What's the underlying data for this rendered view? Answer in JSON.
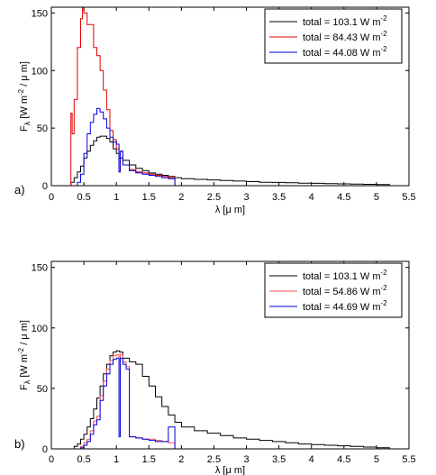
{
  "chart_data": [
    {
      "type": "line",
      "panel_label": "a)",
      "xlabel": "λ [μ m]",
      "ylabel": "F_λ [W m^-2 / μ m]",
      "xlim": [
        0,
        5.5
      ],
      "ylim": [
        0,
        155
      ],
      "xticks": [
        "0",
        "0.5",
        "1",
        "1.5",
        "2",
        "2.5",
        "3",
        "3.5",
        "4",
        "4.5",
        "5",
        "5.5"
      ],
      "yticks": [
        "0",
        "50",
        "100",
        "150"
      ],
      "legend_position": "top-right",
      "series": [
        {
          "label": "total = 103.1 W m",
          "superscript": "-2",
          "color": "#000000",
          "x": [
            0.3,
            0.35,
            0.4,
            0.45,
            0.5,
            0.55,
            0.6,
            0.65,
            0.7,
            0.75,
            0.8,
            0.85,
            0.9,
            0.95,
            1.0,
            1.04,
            1.06,
            1.1,
            1.2,
            1.3,
            1.4,
            1.5,
            1.6,
            1.7,
            1.8,
            1.9,
            2.0,
            2.2,
            2.4,
            2.6,
            2.8,
            3.0,
            3.2,
            3.4,
            3.6,
            3.8,
            4.0,
            4.2,
            4.4,
            4.6,
            4.8,
            5.0,
            5.2
          ],
          "y": [
            3,
            7,
            12,
            17,
            24,
            30,
            35,
            39,
            42,
            43,
            43,
            41,
            38,
            32,
            28,
            24,
            24,
            22,
            18,
            15,
            13,
            11,
            10,
            9,
            8,
            7,
            6,
            5.5,
            5,
            4.5,
            4,
            3.5,
            3,
            2.8,
            2.5,
            2.2,
            2,
            1.8,
            1.6,
            1.4,
            1.2,
            1,
            0
          ]
        },
        {
          "label": "total = 84.43 W m",
          "superscript": "-2",
          "color": "#e00000",
          "x": [
            0.3,
            0.32,
            0.35,
            0.4,
            0.45,
            0.48,
            0.5,
            0.55,
            0.6,
            0.65,
            0.7,
            0.75,
            0.8,
            0.85,
            0.9,
            0.95,
            1.0,
            1.04,
            1.06,
            1.1,
            1.2,
            1.3,
            1.4,
            1.5,
            1.6,
            1.7,
            1.8,
            1.9
          ],
          "y": [
            63,
            45,
            75,
            120,
            145,
            155,
            150,
            140,
            140,
            120,
            113,
            100,
            83,
            66,
            48,
            40,
            32,
            12,
            30,
            18,
            14,
            12,
            11,
            10,
            9,
            8,
            7,
            0
          ]
        },
        {
          "label": "total = 44.08 W m",
          "superscript": "-2",
          "color": "#0000e0",
          "x": [
            0.4,
            0.45,
            0.5,
            0.55,
            0.6,
            0.65,
            0.7,
            0.75,
            0.8,
            0.85,
            0.9,
            0.95,
            1.0,
            1.04,
            1.06,
            1.1,
            1.2,
            1.3,
            1.4,
            1.5,
            1.6,
            1.7,
            1.8,
            1.9
          ],
          "y": [
            3,
            10,
            28,
            45,
            55,
            62,
            67,
            64,
            58,
            50,
            42,
            38,
            36,
            12,
            30,
            18,
            13,
            11,
            10,
            9,
            8,
            7,
            6,
            0
          ]
        }
      ]
    },
    {
      "type": "line",
      "panel_label": "b)",
      "xlabel": "λ [μ m]",
      "ylabel": "F_λ [W m^-2 / μ m]",
      "xlim": [
        0,
        5.5
      ],
      "ylim": [
        0,
        155
      ],
      "xticks": [
        "0",
        "0.5",
        "1",
        "1.5",
        "2",
        "2.5",
        "3",
        "3.5",
        "4",
        "4.5",
        "5",
        "5.5"
      ],
      "yticks": [
        "0",
        "50",
        "100",
        "150"
      ],
      "legend_position": "top-right",
      "series": [
        {
          "label": "total = 103.1 W m",
          "superscript": "-2",
          "color": "#000000",
          "x": [
            0.35,
            0.4,
            0.45,
            0.5,
            0.55,
            0.6,
            0.65,
            0.7,
            0.75,
            0.8,
            0.85,
            0.9,
            0.95,
            1.0,
            1.05,
            1.1,
            1.2,
            1.3,
            1.4,
            1.5,
            1.6,
            1.7,
            1.8,
            1.9,
            2.0,
            2.2,
            2.4,
            2.6,
            2.8,
            3.0,
            3.2,
            3.4,
            3.6,
            3.8,
            4.0,
            4.2,
            4.4,
            4.6,
            4.8,
            5.0,
            5.2
          ],
          "y": [
            2,
            4,
            8,
            12,
            18,
            25,
            33,
            42,
            52,
            62,
            70,
            77,
            80,
            81,
            80,
            75,
            72,
            70,
            60,
            52,
            43,
            35,
            28,
            22,
            18,
            15,
            13,
            11,
            9,
            8,
            7,
            6,
            5,
            4,
            3.5,
            3,
            2.5,
            2,
            1.5,
            1,
            0
          ]
        },
        {
          "label": "total = 54.86 W m",
          "superscript": "-2",
          "color": "#ff5050",
          "x": [
            0.45,
            0.5,
            0.55,
            0.6,
            0.65,
            0.7,
            0.75,
            0.8,
            0.85,
            0.9,
            0.95,
            1.0,
            1.04,
            1.06,
            1.1,
            1.15,
            1.2,
            1.3,
            1.4,
            1.5,
            1.6,
            1.7,
            1.8,
            1.9
          ],
          "y": [
            2,
            5,
            8,
            15,
            23,
            27,
            44,
            56,
            66,
            73,
            77,
            78,
            12,
            78,
            72,
            68,
            10,
            9,
            8,
            8,
            7,
            6,
            5,
            0
          ]
        },
        {
          "label": "total = 44.69 W m",
          "superscript": "-2",
          "color": "#0000e0",
          "x": [
            0.45,
            0.5,
            0.55,
            0.6,
            0.65,
            0.7,
            0.75,
            0.8,
            0.85,
            0.9,
            0.95,
            1.0,
            1.04,
            1.06,
            1.1,
            1.15,
            1.2,
            1.3,
            1.4,
            1.5,
            1.6,
            1.7,
            1.8,
            1.9
          ],
          "y": [
            1,
            3,
            6,
            12,
            20,
            24,
            40,
            52,
            62,
            70,
            74,
            75,
            10,
            75,
            70,
            66,
            10,
            9,
            8,
            7,
            6,
            6,
            18,
            0
          ]
        }
      ]
    }
  ]
}
